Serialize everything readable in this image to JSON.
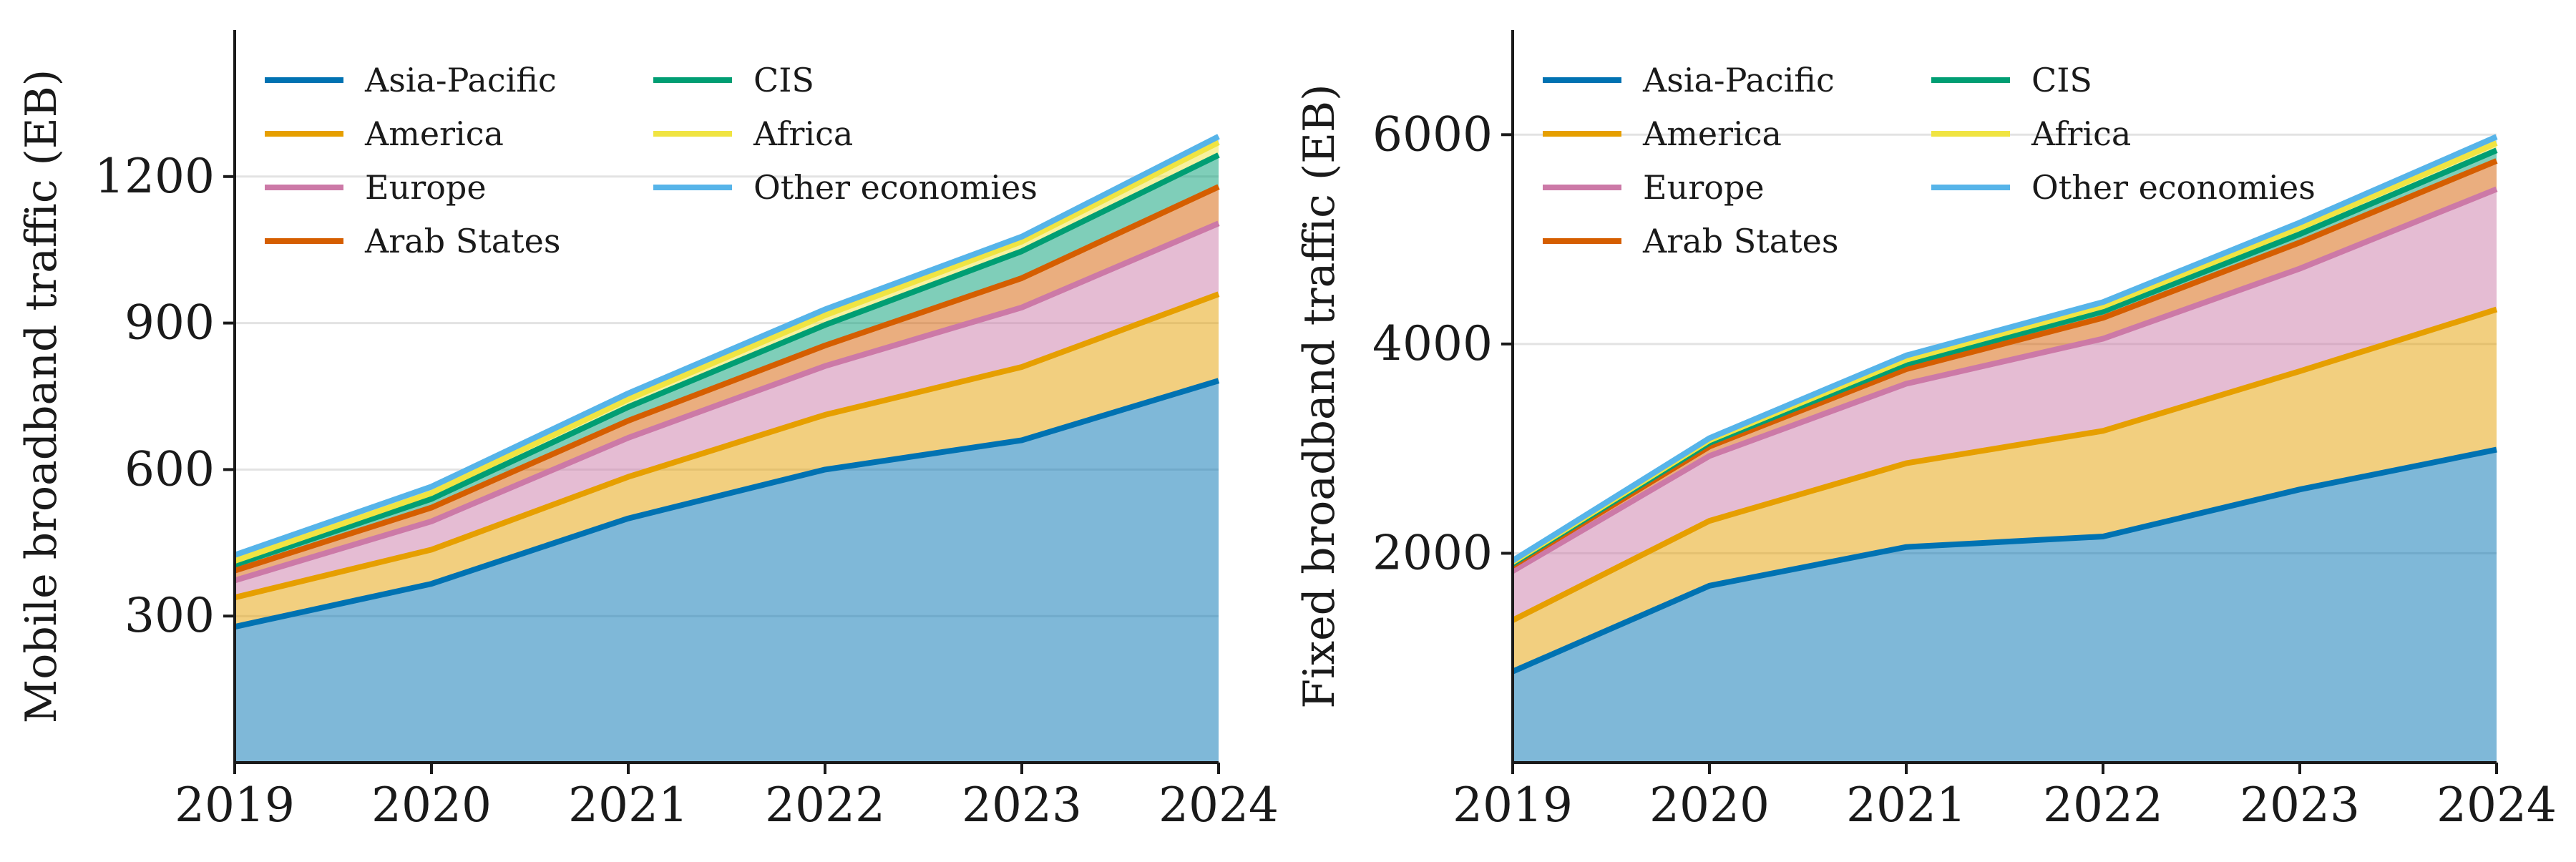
{
  "chart_data": [
    {
      "type": "area",
      "stacked": true,
      "ylabel": "Mobile broadband traffic (EB)",
      "xlabel": "",
      "x": [
        "2019",
        "2020",
        "2021",
        "2022",
        "2023",
        "2024"
      ],
      "ylim": [
        0,
        1500
      ],
      "yticks": [
        "300",
        "600",
        "900",
        "1200"
      ],
      "grid": "horizontal",
      "legend_position": "top-left",
      "series": [
        {
          "name": "Asia-Pacific",
          "color": "#0072B2",
          "values": [
            278,
            366,
            500,
            600,
            660,
            782
          ]
        },
        {
          "name": "America",
          "color": "#E69F00",
          "values": [
            60,
            70,
            85,
            112,
            150,
            177
          ]
        },
        {
          "name": "Europe",
          "color": "#CC79A7",
          "values": [
            35,
            58,
            80,
            100,
            122,
            145
          ]
        },
        {
          "name": "Arab States",
          "color": "#D55E00",
          "values": [
            20,
            28,
            35,
            42,
            60,
            75
          ]
        },
        {
          "name": "CIS",
          "color": "#009E73",
          "values": [
            12,
            18,
            28,
            42,
            55,
            65
          ]
        },
        {
          "name": "Africa",
          "color": "#F0E442",
          "values": [
            8,
            12,
            16,
            20,
            20,
            26
          ]
        },
        {
          "name": "Other economies",
          "color": "#56B4E9",
          "values": [
            12,
            13,
            12,
            12,
            10,
            12
          ]
        }
      ]
    },
    {
      "type": "area",
      "stacked": true,
      "ylabel": "Fixed broadband traffic (EB)",
      "xlabel": "",
      "x": [
        "2019",
        "2020",
        "2021",
        "2022",
        "2023",
        "2024"
      ],
      "ylim": [
        0,
        7000
      ],
      "yticks": [
        "2000",
        "4000",
        "6000"
      ],
      "grid": "horizontal",
      "legend_position": "top-left",
      "series": [
        {
          "name": "Asia-Pacific",
          "color": "#0072B2",
          "values": [
            870,
            1690,
            2060,
            2160,
            2610,
            2990
          ]
        },
        {
          "name": "America",
          "color": "#E69F00",
          "values": [
            490,
            620,
            800,
            1010,
            1130,
            1340
          ]
        },
        {
          "name": "Europe",
          "color": "#CC79A7",
          "values": [
            470,
            620,
            760,
            880,
            980,
            1150
          ]
        },
        {
          "name": "Arab States",
          "color": "#D55E00",
          "values": [
            50,
            90,
            140,
            200,
            250,
            270
          ]
        },
        {
          "name": "CIS",
          "color": "#009E73",
          "values": [
            20,
            35,
            50,
            60,
            80,
            100
          ]
        },
        {
          "name": "Africa",
          "color": "#F0E442",
          "values": [
            15,
            25,
            40,
            50,
            60,
            70
          ]
        },
        {
          "name": "Other economies",
          "color": "#56B4E9",
          "values": [
            15,
            20,
            40,
            40,
            50,
            60
          ]
        }
      ]
    }
  ]
}
